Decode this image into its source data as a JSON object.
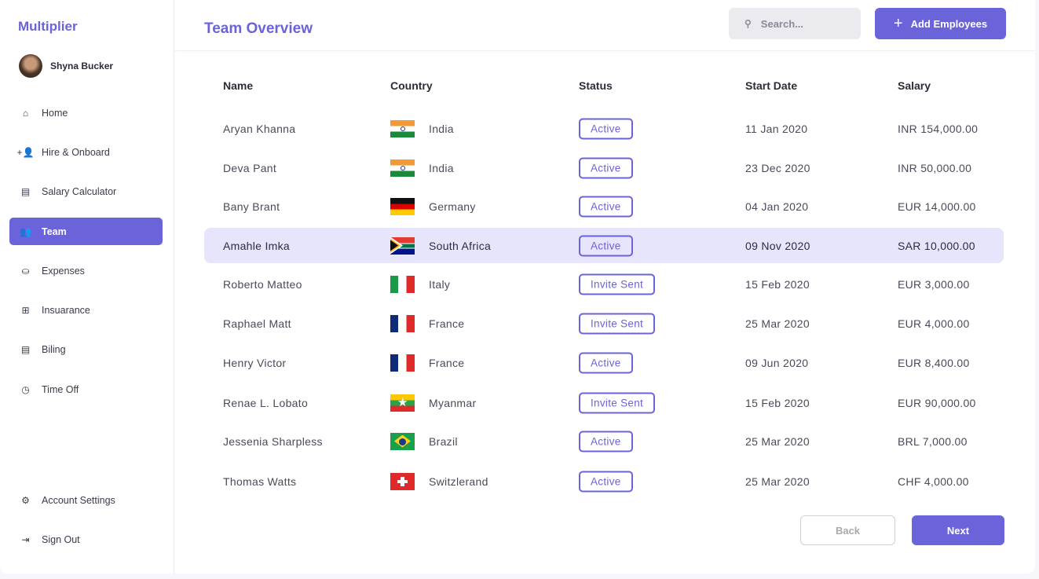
{
  "app": {
    "name": "Multiplier"
  },
  "user": {
    "name": "Shyna Bucker"
  },
  "sidebar": {
    "items": [
      {
        "label": "Home",
        "icon": "home-icon",
        "glyph": "⌂"
      },
      {
        "label": "Hire & Onboard",
        "icon": "add-user-icon",
        "glyph": "+👤"
      },
      {
        "label": "Salary Calculator",
        "icon": "calculator-icon",
        "glyph": "▤"
      },
      {
        "label": "Team",
        "icon": "team-icon",
        "glyph": "👥",
        "active": true
      },
      {
        "label": "Expenses",
        "icon": "expenses-icon",
        "glyph": "⛀"
      },
      {
        "label": "Insuarance",
        "icon": "insurance-icon",
        "glyph": "⊞"
      },
      {
        "label": "Biling",
        "icon": "billing-icon",
        "glyph": "▤"
      },
      {
        "label": "Time Off",
        "icon": "clock-icon",
        "glyph": "◷"
      }
    ],
    "bottom": [
      {
        "label": "Account Settings",
        "icon": "gear-icon",
        "glyph": "⚙"
      },
      {
        "label": "Sign Out",
        "icon": "sign-out-icon",
        "glyph": "⇥"
      }
    ]
  },
  "header": {
    "title": "Team Overview",
    "search_placeholder": "Search...",
    "add_label": "Add Employees"
  },
  "table": {
    "columns": [
      "Name",
      "Country",
      "Status",
      "Start Date",
      "Salary"
    ],
    "rows": [
      {
        "name": "Aryan Khanna",
        "country": "India",
        "flag": "india",
        "status": "Active",
        "start": "11 Jan 2020",
        "salary": "INR 154,000.00"
      },
      {
        "name": "Deva Pant",
        "country": "India",
        "flag": "india",
        "status": "Active",
        "start": "23 Dec 2020",
        "salary": "INR 50,000.00"
      },
      {
        "name": "Bany Brant",
        "country": "Germany",
        "flag": "germany",
        "status": "Active",
        "start": "04 Jan 2020",
        "salary": "EUR 14,000.00"
      },
      {
        "name": "Amahle Imka",
        "country": "South Africa",
        "flag": "south-africa",
        "status": "Active",
        "start": "09 Nov 2020",
        "salary": "SAR 10,000.00",
        "highlight": true
      },
      {
        "name": "Roberto Matteo",
        "country": "Italy",
        "flag": "italy",
        "status": "Invite Sent",
        "start": "15 Feb 2020",
        "salary": "EUR 3,000.00"
      },
      {
        "name": "Raphael Matt",
        "country": "France",
        "flag": "france",
        "status": "Invite Sent",
        "start": "25 Mar 2020",
        "salary": "EUR 4,000.00"
      },
      {
        "name": "Henry Victor",
        "country": "France",
        "flag": "france",
        "status": "Active",
        "start": "09 Jun 2020",
        "salary": "EUR 8,400.00"
      },
      {
        "name": "Renae L. Lobato",
        "country": "Myanmar",
        "flag": "myanmar",
        "status": "Invite Sent",
        "start": "15 Feb 2020",
        "salary": "EUR 90,000.00"
      },
      {
        "name": "Jessenia Sharpless",
        "country": "Brazil",
        "flag": "brazil",
        "status": "Active",
        "start": "25 Mar 2020",
        "salary": "BRL 7,000.00"
      },
      {
        "name": "Thomas Watts",
        "country": "Switzlerand",
        "flag": "switzerland",
        "status": "Active",
        "start": "25 Mar 2020",
        "salary": "CHF 4,000.00"
      }
    ]
  },
  "pagination": {
    "back": "Back",
    "next": "Next"
  },
  "colors": {
    "accent": "#6a63d9",
    "highlight": "#e6e5fb"
  }
}
